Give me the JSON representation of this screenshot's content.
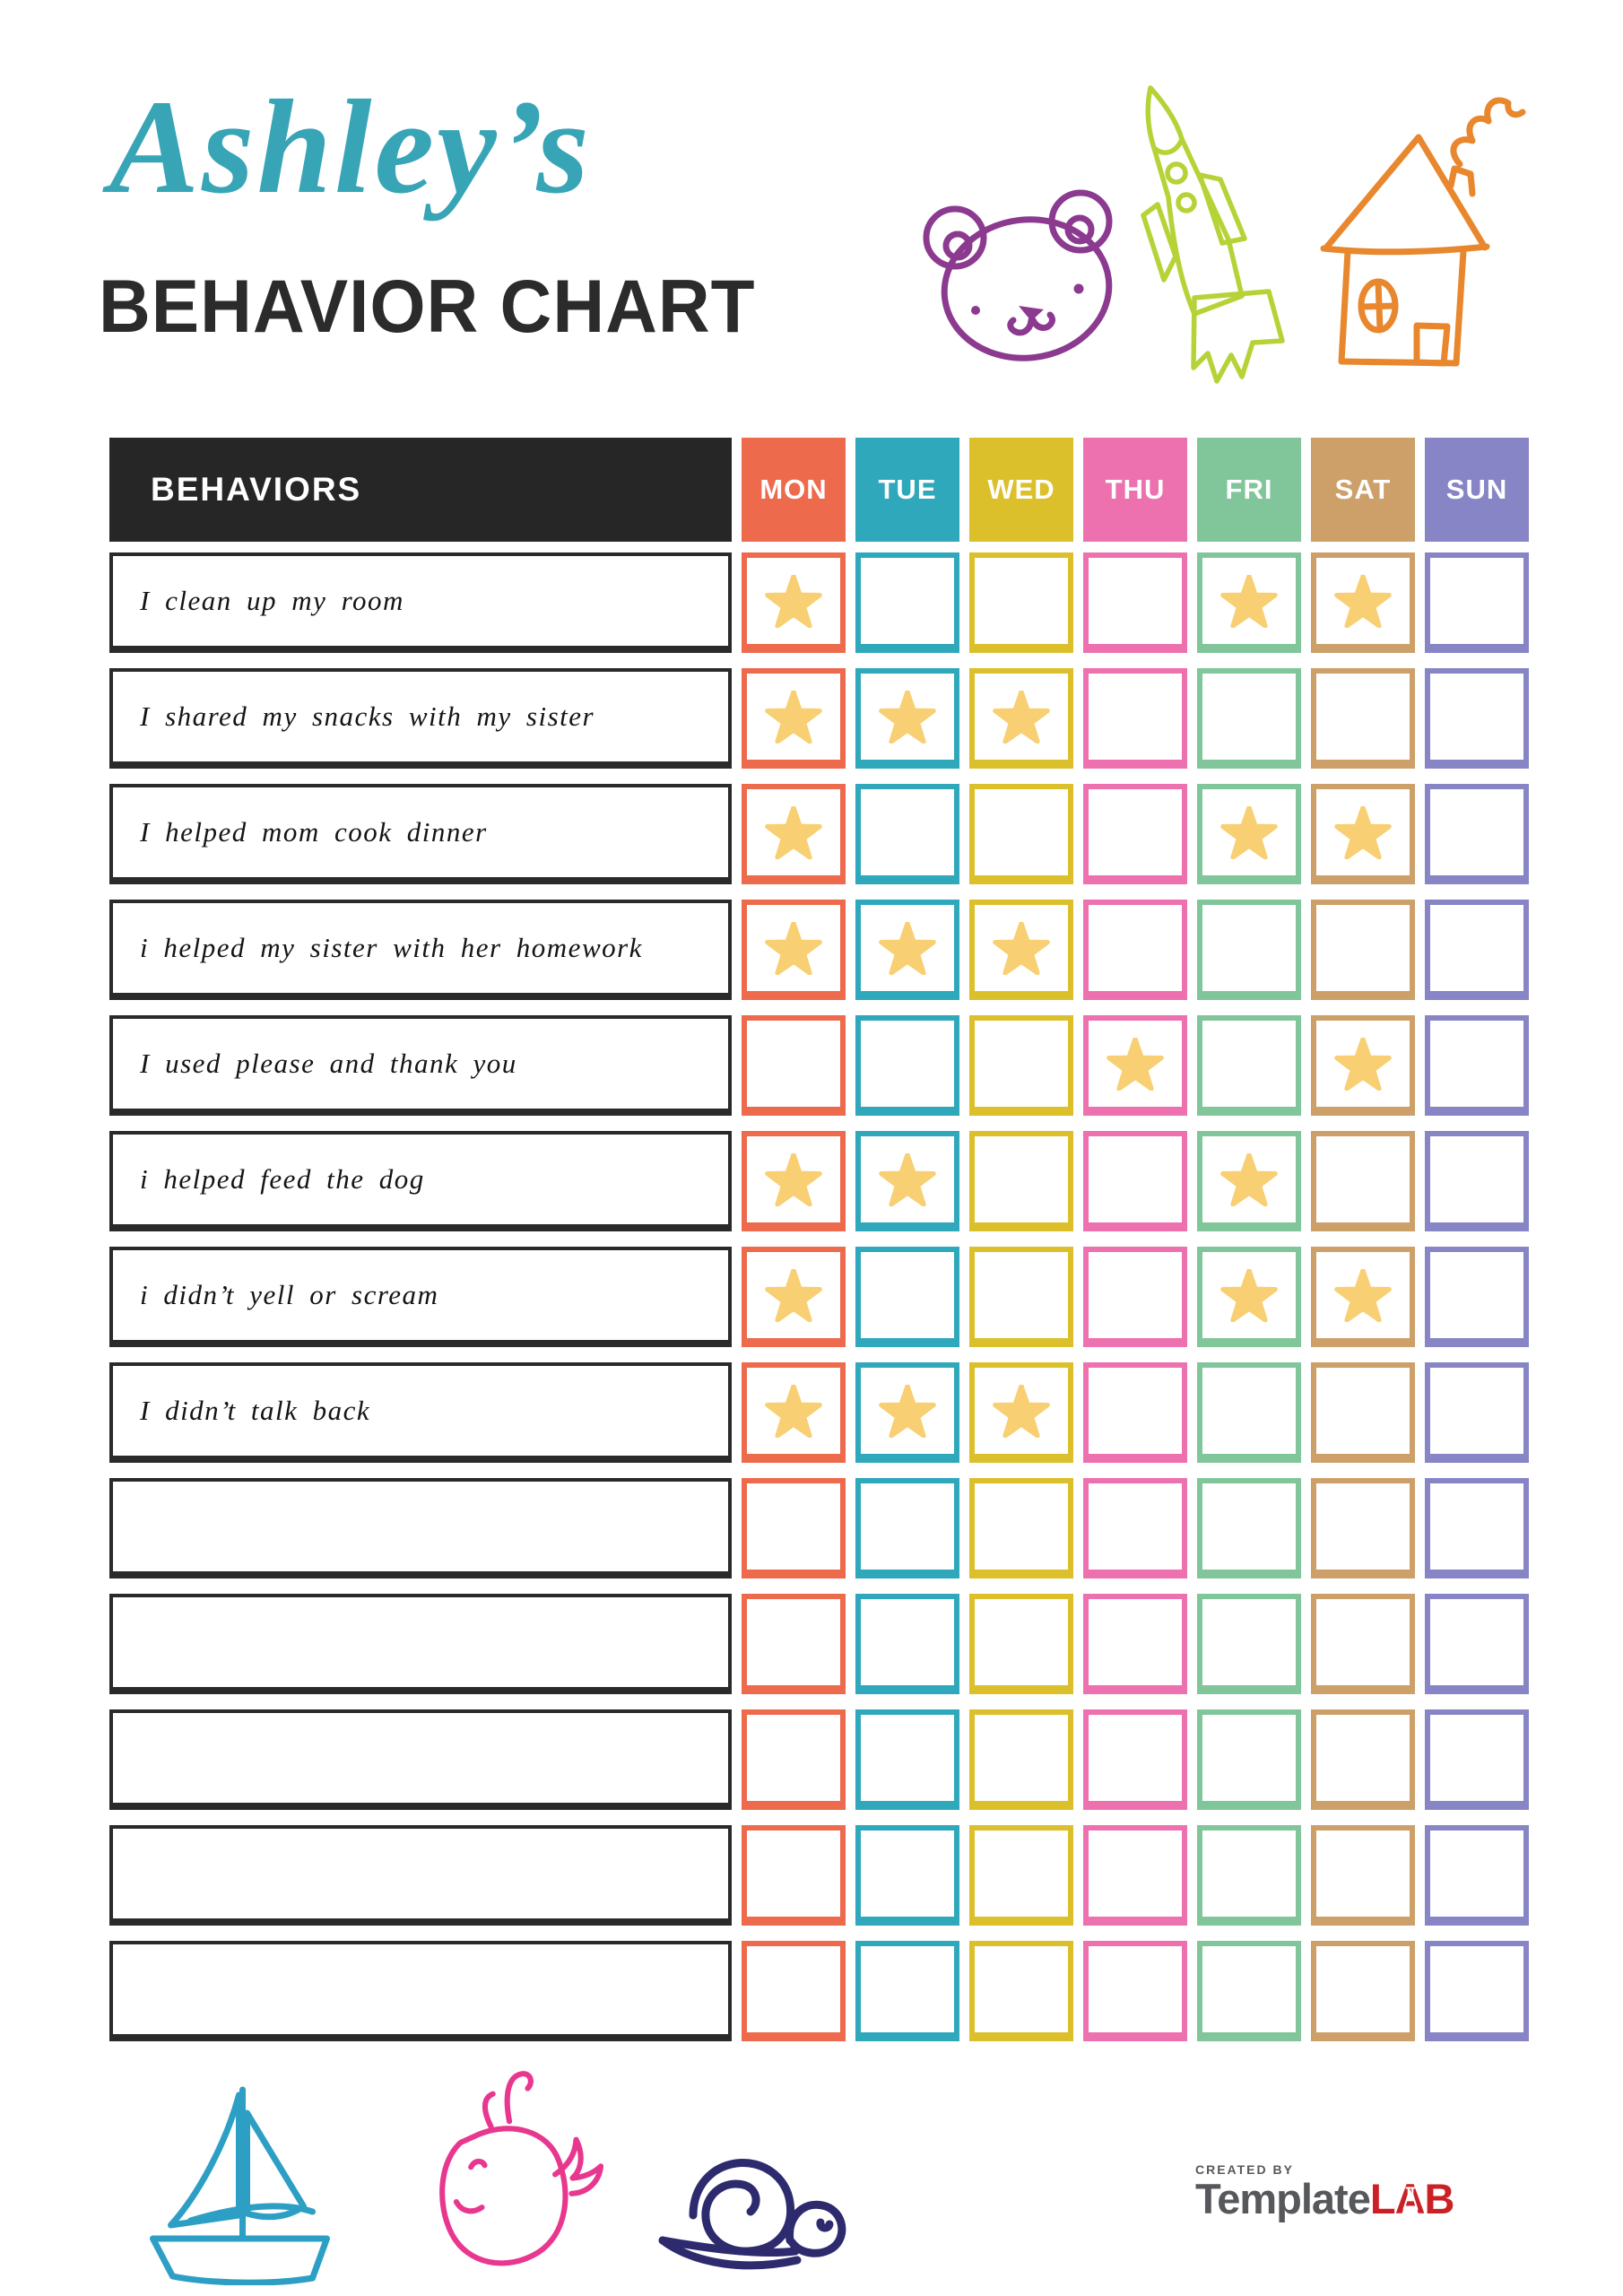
{
  "header": {
    "name_script": "Ashley’s",
    "title": "BEHAVIOR CHART"
  },
  "colors": {
    "title_script": "#38a5b7",
    "title_main": "#2b2b2b",
    "table_header_bg": "#262626",
    "behavior_border": "#2a2a2a",
    "star": "#f8cf72",
    "bear": "#8b3a8f",
    "rocket": "#b5d337",
    "house": "#e8872d",
    "sailboat": "#2d9fc4",
    "whale": "#e8378e",
    "snail": "#2d2a6e",
    "logo_gray": "#57585b",
    "logo_red": "#cb2026"
  },
  "decorations": {
    "top": [
      "bear-icon",
      "rocket-icon",
      "house-icon"
    ],
    "bottom": [
      "sailboat-icon",
      "whale-icon",
      "snail-icon"
    ]
  },
  "table": {
    "behaviors_header": "BEHAVIORS",
    "days": [
      {
        "label": "MON",
        "color": "#ed6a4d"
      },
      {
        "label": "TUE",
        "color": "#2fa8bb"
      },
      {
        "label": "WED",
        "color": "#dcc02b"
      },
      {
        "label": "THU",
        "color": "#ee71af"
      },
      {
        "label": "FRI",
        "color": "#80c69a"
      },
      {
        "label": "SAT",
        "color": "#cda06a"
      },
      {
        "label": "SUN",
        "color": "#8785c5"
      }
    ],
    "rows": [
      {
        "label": "I clean up my room",
        "stars": [
          1,
          0,
          0,
          0,
          1,
          1,
          0
        ]
      },
      {
        "label": "I shared my snacks with my sister",
        "stars": [
          1,
          1,
          1,
          0,
          0,
          0,
          0
        ]
      },
      {
        "label": "I helped mom cook dinner",
        "stars": [
          1,
          0,
          0,
          0,
          1,
          1,
          0
        ]
      },
      {
        "label": "i helped my sister with her homework",
        "stars": [
          1,
          1,
          1,
          0,
          0,
          0,
          0
        ]
      },
      {
        "label": "I used please and thank you",
        "stars": [
          0,
          0,
          0,
          1,
          0,
          1,
          0
        ]
      },
      {
        "label": "i helped feed the dog",
        "stars": [
          1,
          1,
          0,
          0,
          1,
          0,
          0
        ]
      },
      {
        "label": "i didn’t yell or scream",
        "stars": [
          1,
          0,
          0,
          0,
          1,
          1,
          0
        ]
      },
      {
        "label": "I didn’t talk back",
        "stars": [
          1,
          1,
          1,
          0,
          0,
          0,
          0
        ]
      },
      {
        "label": "",
        "stars": [
          0,
          0,
          0,
          0,
          0,
          0,
          0
        ]
      },
      {
        "label": "",
        "stars": [
          0,
          0,
          0,
          0,
          0,
          0,
          0
        ]
      },
      {
        "label": "",
        "stars": [
          0,
          0,
          0,
          0,
          0,
          0,
          0
        ]
      },
      {
        "label": "",
        "stars": [
          0,
          0,
          0,
          0,
          0,
          0,
          0
        ]
      },
      {
        "label": "",
        "stars": [
          0,
          0,
          0,
          0,
          0,
          0,
          0
        ]
      }
    ]
  },
  "footer": {
    "created_by": "CREATED BY",
    "brand_primary": "Template",
    "brand_secondary": "LAB"
  }
}
